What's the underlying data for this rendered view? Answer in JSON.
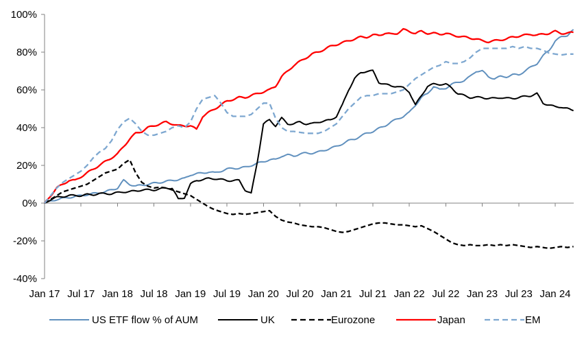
{
  "chart_data": {
    "type": "line",
    "title": "",
    "xlabel": "",
    "ylabel": "",
    "grid": false,
    "legend_position": "bottom",
    "y_axis": {
      "ticks": [
        "100%",
        "80%",
        "60%",
        "40%",
        "20%",
        "0%",
        "-20%",
        "-40%"
      ],
      "values": [
        100,
        80,
        60,
        40,
        20,
        0,
        -20,
        -40
      ],
      "range": [
        -40,
        100
      ]
    },
    "x_axis": {
      "ticks": [
        "Jan 17",
        "Jul 17",
        "Jan 18",
        "Jul 18",
        "Jan 19",
        "Jul 19",
        "Jan 20",
        "Jul 20",
        "Jan 21",
        "Jul 21",
        "Jan 22",
        "Jul 22",
        "Jan 23",
        "Jul 23",
        "Jan 24"
      ],
      "start": "Jan 2017",
      "end": "Apr 2024",
      "frequency": "monthly"
    },
    "series": [
      {
        "name": "US ETF flow % of AUM",
        "color": "#6090BE",
        "style": "solid",
        "values": [
          0,
          1,
          2,
          2.5,
          3,
          3.5,
          4,
          4.5,
          5,
          5.5,
          6,
          7,
          8,
          12,
          10,
          9,
          9.5,
          10,
          10.5,
          11,
          11.5,
          12,
          12.5,
          13,
          15,
          15.5,
          16,
          16.5,
          16,
          17,
          18,
          18.5,
          18.5,
          19,
          20,
          21,
          22,
          23,
          23,
          25,
          25.5,
          25,
          26,
          26.5,
          26.5,
          27,
          28,
          29,
          30,
          31.5,
          33,
          34,
          35.5,
          37,
          38,
          39.5,
          41,
          43,
          44.5,
          46,
          48,
          52,
          56,
          58,
          62,
          60,
          61,
          63,
          64,
          65,
          67,
          70,
          70,
          67,
          66,
          67,
          67,
          68,
          68,
          70,
          72,
          74,
          78,
          81,
          86,
          88,
          89,
          92
        ]
      },
      {
        "name": "UK",
        "color": "#000000",
        "style": "solid",
        "values": [
          0,
          2,
          3,
          3.5,
          4,
          4,
          4,
          4.5,
          4.5,
          5,
          5,
          5,
          5.5,
          6,
          6,
          6.5,
          7,
          7,
          7,
          7.5,
          8,
          8,
          2,
          3,
          10,
          12,
          12.5,
          13,
          13,
          12.5,
          12,
          12,
          12,
          7,
          5,
          22,
          42,
          44,
          41,
          45,
          42,
          42,
          43,
          42,
          42,
          43,
          43.5,
          44,
          46,
          52,
          60,
          66,
          69,
          70,
          70,
          64,
          63,
          62,
          62,
          61,
          59,
          52,
          57,
          62,
          63,
          63,
          63,
          61,
          58,
          57,
          56,
          56,
          56,
          55.5,
          55.5,
          56,
          55.5,
          55.5,
          56,
          56.5,
          57,
          58,
          53,
          52,
          51,
          51,
          50,
          49
        ]
      },
      {
        "name": "Eurozone",
        "color": "#000000",
        "style": "dashed",
        "values": [
          0,
          2,
          4,
          6,
          7,
          8,
          9,
          10,
          12,
          14,
          16,
          17,
          18,
          21,
          23,
          16,
          11,
          9,
          8,
          8.5,
          8,
          7,
          6,
          5,
          4,
          2,
          0,
          -2,
          -3.5,
          -4.5,
          -5.5,
          -6,
          -5.5,
          -6,
          -5.5,
          -5,
          -4.5,
          -4,
          -7,
          -9,
          -10,
          -10.5,
          -11.5,
          -12,
          -12.5,
          -12.5,
          -13,
          -14,
          -15,
          -15.5,
          -15,
          -14,
          -13,
          -12,
          -11,
          -10.5,
          -10.5,
          -11,
          -11.5,
          -11.5,
          -12,
          -12.5,
          -12,
          -13.5,
          -15,
          -17,
          -19,
          -21,
          -22,
          -22.5,
          -22,
          -22.5,
          -22.5,
          -22,
          -22.5,
          -22,
          -22.5,
          -22,
          -22.5,
          -23,
          -23.5,
          -23,
          -23.5,
          -24,
          -23.5,
          -23,
          -23.5,
          -23
        ]
      },
      {
        "name": "Japan",
        "color": "#FF0000",
        "style": "solid",
        "values": [
          0,
          4,
          8,
          10,
          12,
          12,
          14,
          16,
          18,
          20,
          22,
          24,
          26,
          30,
          34,
          37,
          38,
          40,
          41,
          42,
          43,
          42,
          41,
          41,
          41,
          39,
          46,
          48,
          50,
          52,
          54,
          55,
          56,
          56,
          57,
          58,
          59,
          60,
          62,
          67,
          70,
          73,
          75,
          77,
          79,
          80,
          81.5,
          83,
          84,
          85,
          86,
          87,
          88,
          88,
          89,
          89,
          90,
          89.5,
          90,
          92,
          91,
          90,
          91,
          90,
          90,
          89.5,
          90,
          89,
          88.5,
          88,
          87.5,
          87,
          86,
          85.5,
          86,
          86.5,
          87,
          88,
          88.5,
          89,
          89.5,
          89,
          89.5,
          90,
          91,
          90,
          90,
          90.5
        ]
      },
      {
        "name": "EM",
        "color": "#7DA7D0",
        "style": "dashed",
        "values": [
          0,
          4,
          8,
          11,
          13,
          15,
          17,
          20,
          24,
          27,
          29,
          33,
          39,
          43,
          45,
          42,
          38,
          36,
          36,
          37,
          38,
          40,
          41,
          40,
          43,
          50,
          55,
          56,
          57,
          53,
          48,
          46,
          46,
          46,
          47,
          50,
          53,
          53,
          45,
          40,
          38,
          38,
          37.5,
          37,
          37,
          37,
          38,
          40,
          42,
          46,
          50,
          53,
          56,
          57,
          57,
          58,
          58,
          58,
          59,
          60,
          63,
          66,
          68,
          70,
          72,
          73,
          75,
          74,
          74,
          75,
          77,
          80,
          82,
          82,
          82,
          82,
          82,
          83,
          82,
          83,
          82,
          82,
          81,
          79.5,
          79,
          78.5,
          79,
          79
        ]
      }
    ],
    "legend": [
      "US ETF flow % of AUM",
      "UK",
      "Eurozone",
      "Japan",
      "EM"
    ],
    "colors": {
      "us_blue": "#6090BE",
      "em_blue": "#7DA7D0",
      "japan_red": "#FF0000",
      "black": "#000000",
      "axis_gray": "#808080"
    }
  }
}
